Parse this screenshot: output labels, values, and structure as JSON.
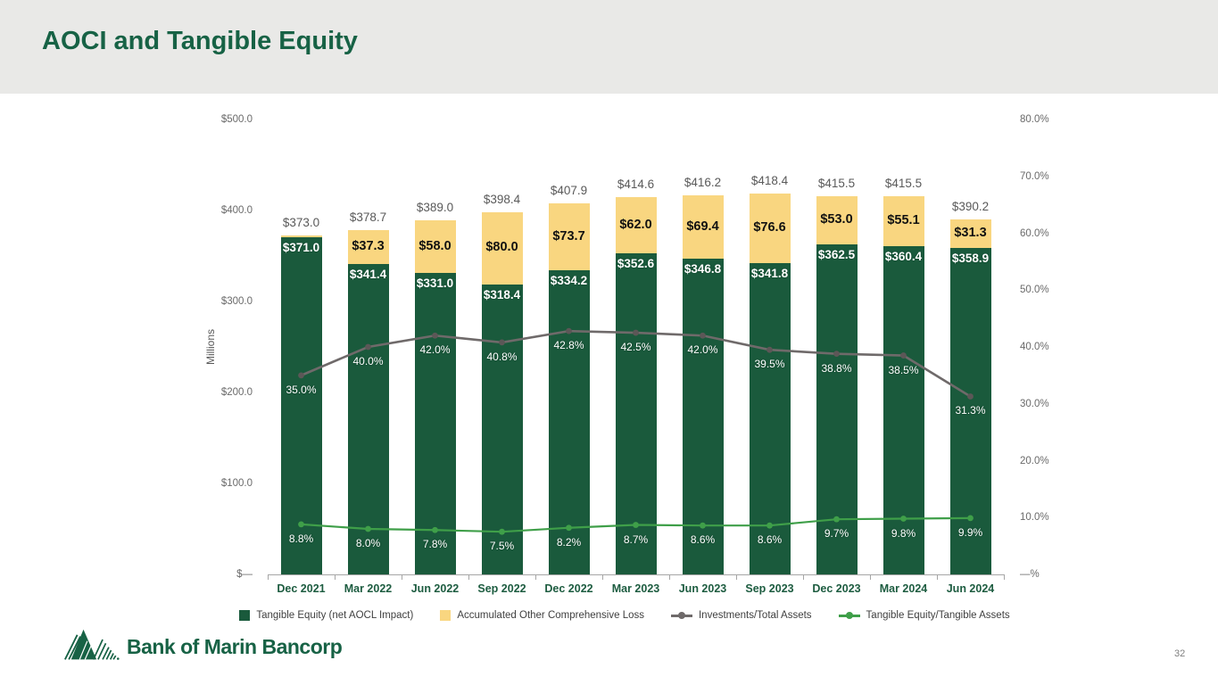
{
  "slide": {
    "title": "AOCI and Tangible Equity",
    "page_number": "32",
    "logo_text": "Bank of Marin Bancorp"
  },
  "chart_data": {
    "type": "bar",
    "subtype": "stacked-bars-with-line-overlays",
    "title": "AOCI and Tangible Equity",
    "categories": [
      "Dec 2021",
      "Mar 2022",
      "Jun 2022",
      "Sep 2022",
      "Dec 2022",
      "Mar 2023",
      "Jun 2023",
      "Sep 2023",
      "Dec 2023",
      "Mar 2024",
      "Jun 2024"
    ],
    "bar_series": [
      {
        "name": "Tangible Equity (net AOCL Impact)",
        "color": "#1A5A3C",
        "axis": "left",
        "values": [
          371.0,
          341.4,
          331.0,
          318.4,
          334.2,
          352.6,
          346.8,
          341.8,
          362.5,
          360.4,
          358.9
        ],
        "labels": [
          "$371.0",
          "$341.4",
          "$331.0",
          "$318.4",
          "$334.2",
          "$352.6",
          "$346.8",
          "$341.8",
          "$362.5",
          "$360.4",
          "$358.9"
        ]
      },
      {
        "name": "Accumulated Other Comprehensive Loss",
        "color": "#F9D680",
        "axis": "left",
        "values": [
          2.0,
          37.3,
          58.0,
          80.0,
          73.7,
          62.0,
          69.4,
          76.6,
          53.0,
          55.1,
          31.3
        ],
        "labels": [
          "",
          "$37.3",
          "$58.0",
          "$80.0",
          "$73.7",
          "$62.0",
          "$69.4",
          "$76.6",
          "$53.0",
          "$55.1",
          "$31.3"
        ]
      }
    ],
    "stack_totals": {
      "values": [
        373.0,
        378.7,
        389.0,
        398.4,
        407.9,
        414.6,
        416.2,
        418.4,
        415.5,
        415.5,
        390.2
      ],
      "labels": [
        "$373.0",
        "$378.7",
        "$389.0",
        "$398.4",
        "$407.9",
        "$414.6",
        "$416.2",
        "$418.4",
        "$415.5",
        "$415.5",
        "$390.2"
      ]
    },
    "line_series": [
      {
        "name": "Investments/Total Assets",
        "color": "#6F6A6A",
        "marker_color": "#5c5757",
        "axis": "right",
        "values": [
          35.0,
          40.0,
          42.0,
          40.8,
          42.8,
          42.5,
          42.0,
          39.5,
          38.8,
          38.5,
          31.3
        ],
        "labels": [
          "35.0%",
          "40.0%",
          "42.0%",
          "40.8%",
          "42.8%",
          "42.5%",
          "42.0%",
          "39.5%",
          "38.8%",
          "38.5%",
          "31.3%"
        ]
      },
      {
        "name": "Tangible Equity/Tangible Assets",
        "color": "#3F9F49",
        "marker_color": "#3F9F49",
        "axis": "right",
        "values": [
          8.8,
          8.0,
          7.8,
          7.5,
          8.2,
          8.7,
          8.6,
          8.6,
          9.7,
          9.8,
          9.9
        ],
        "labels": [
          "8.8%",
          "8.0%",
          "7.8%",
          "7.5%",
          "8.2%",
          "8.7%",
          "8.6%",
          "8.6%",
          "9.7%",
          "9.8%",
          "9.9%"
        ]
      }
    ],
    "left_axis": {
      "title": "Millions",
      "range": [
        0,
        500
      ],
      "ticks": [
        {
          "value": 500,
          "label": "$500.0"
        },
        {
          "value": 400,
          "label": "$400.0"
        },
        {
          "value": 300,
          "label": "$300.0"
        },
        {
          "value": 200,
          "label": "$200.0"
        },
        {
          "value": 100,
          "label": "$100.0"
        },
        {
          "value": 0,
          "label": "$—"
        }
      ]
    },
    "right_axis": {
      "range": [
        0,
        80
      ],
      "ticks": [
        {
          "value": 80,
          "label": "80.0%"
        },
        {
          "value": 70,
          "label": "70.0%"
        },
        {
          "value": 60,
          "label": "60.0%"
        },
        {
          "value": 50,
          "label": "50.0%"
        },
        {
          "value": 40,
          "label": "40.0%"
        },
        {
          "value": 30,
          "label": "30.0%"
        },
        {
          "value": 20,
          "label": "20.0%"
        },
        {
          "value": 10,
          "label": "10.0%"
        },
        {
          "value": 0,
          "label": "—%"
        }
      ]
    },
    "legend": [
      {
        "label": "Tangible Equity (net AOCL Impact)",
        "marker": "square",
        "color": "#1A5A3C"
      },
      {
        "label": "Accumulated Other Comprehensive Loss",
        "marker": "square",
        "color": "#F9D680"
      },
      {
        "label": "Investments/Total Assets",
        "marker": "line",
        "color": "#6F6A6A"
      },
      {
        "label": "Tangible Equity/Tangible Assets",
        "marker": "line",
        "color": "#3F9F49"
      }
    ],
    "grid": false,
    "legend_position": "bottom"
  }
}
